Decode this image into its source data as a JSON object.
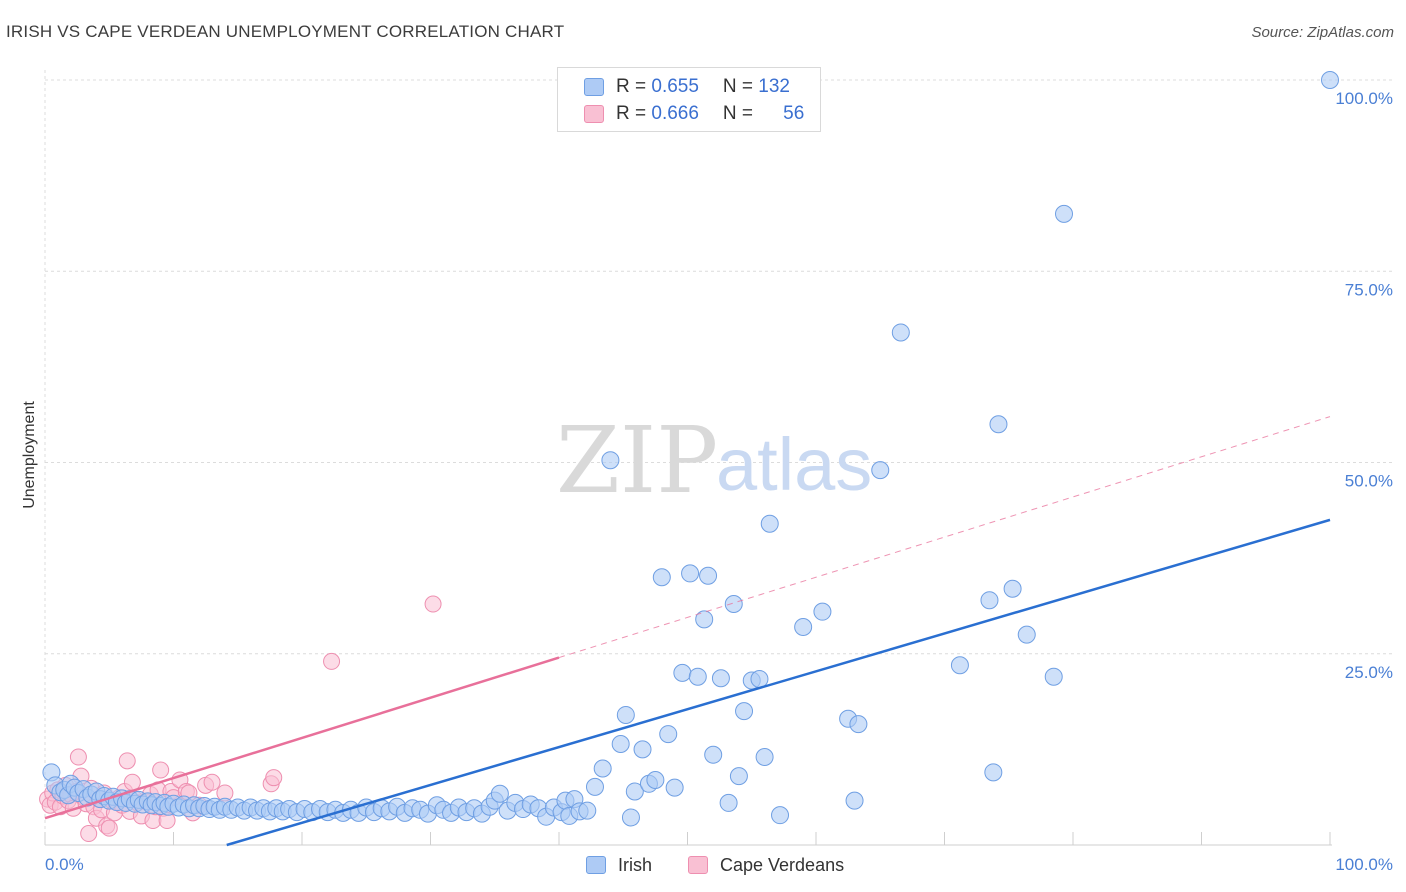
{
  "header": {
    "title": "IRISH VS CAPE VERDEAN UNEMPLOYMENT CORRELATION CHART",
    "source": "Source: ZipAtlas.com"
  },
  "watermark": {
    "zip": "ZIP",
    "atlas": "atlas"
  },
  "legend": {
    "rows": [
      {
        "r_label": "R = ",
        "r_value": "0.655",
        "n_label": "N = ",
        "n_value": "132"
      },
      {
        "r_label": "R = ",
        "r_value": "0.666",
        "n_label": "N = ",
        "n_value": "56"
      }
    ]
  },
  "colors": {
    "irish_fill": "#aecbf5",
    "irish_stroke": "#6f9fe3",
    "irish_line": "#2a6fd1",
    "cape_fill": "#f9c0d3",
    "cape_stroke": "#ee8fb0",
    "cape_line": "#e8709a",
    "tick": "#4a7fd4",
    "grid": "#dcdcdc"
  },
  "chart_data": {
    "type": "scatter",
    "title": "IRISH VS CAPE VERDEAN UNEMPLOYMENT CORRELATION CHART",
    "xlabel": "",
    "ylabel": "Unemployment",
    "xlim": [
      0,
      100
    ],
    "ylim": [
      0,
      100
    ],
    "x_tick_labels": [
      "0.0%",
      "100.0%"
    ],
    "y_tick_labels": [
      "25.0%",
      "50.0%",
      "75.0%",
      "100.0%"
    ],
    "y_ticks": [
      25,
      50,
      75,
      100
    ],
    "grid": true,
    "legend_position": "bottom",
    "series": [
      {
        "name": "Irish",
        "r": 0.655,
        "n": 132,
        "trend": [
          [
            0,
            -7
          ],
          [
            100,
            42.5
          ]
        ],
        "points": [
          [
            0.5,
            9.5
          ],
          [
            0.8,
            7.8
          ],
          [
            1.2,
            6.9
          ],
          [
            1.5,
            7.2
          ],
          [
            1.8,
            6.5
          ],
          [
            2.0,
            8.0
          ],
          [
            2.3,
            7.5
          ],
          [
            2.6,
            6.8
          ],
          [
            3.0,
            7.3
          ],
          [
            3.3,
            6.2
          ],
          [
            3.6,
            6.6
          ],
          [
            4.0,
            7.0
          ],
          [
            4.3,
            6.0
          ],
          [
            4.6,
            6.4
          ],
          [
            5.0,
            5.8
          ],
          [
            5.3,
            6.3
          ],
          [
            5.6,
            5.6
          ],
          [
            6.0,
            6.1
          ],
          [
            6.3,
            5.5
          ],
          [
            6.6,
            6.0
          ],
          [
            7.0,
            5.4
          ],
          [
            7.3,
            5.9
          ],
          [
            7.6,
            5.3
          ],
          [
            8.0,
            5.7
          ],
          [
            8.3,
            5.2
          ],
          [
            8.6,
            5.6
          ],
          [
            9.0,
            5.1
          ],
          [
            9.3,
            5.5
          ],
          [
            9.6,
            5.0
          ],
          [
            10.0,
            5.4
          ],
          [
            10.4,
            4.9
          ],
          [
            10.8,
            5.3
          ],
          [
            11.2,
            4.8
          ],
          [
            11.6,
            5.2
          ],
          [
            12.0,
            4.8
          ],
          [
            12.4,
            5.1
          ],
          [
            12.8,
            4.7
          ],
          [
            13.2,
            5.0
          ],
          [
            13.6,
            4.6
          ],
          [
            14.0,
            5.0
          ],
          [
            14.5,
            4.6
          ],
          [
            15.0,
            4.9
          ],
          [
            15.5,
            4.5
          ],
          [
            16.0,
            4.9
          ],
          [
            16.5,
            4.5
          ],
          [
            17.0,
            4.8
          ],
          [
            17.5,
            4.4
          ],
          [
            18.0,
            4.8
          ],
          [
            18.5,
            4.4
          ],
          [
            19.0,
            4.7
          ],
          [
            19.6,
            4.3
          ],
          [
            20.2,
            4.7
          ],
          [
            20.8,
            4.3
          ],
          [
            21.4,
            4.7
          ],
          [
            22.0,
            4.3
          ],
          [
            22.6,
            4.6
          ],
          [
            23.2,
            4.2
          ],
          [
            23.8,
            4.6
          ],
          [
            24.4,
            4.2
          ],
          [
            25.0,
            4.9
          ],
          [
            25.6,
            4.3
          ],
          [
            26.2,
            4.8
          ],
          [
            26.8,
            4.4
          ],
          [
            27.4,
            5.0
          ],
          [
            28.0,
            4.2
          ],
          [
            28.6,
            4.8
          ],
          [
            29.2,
            4.6
          ],
          [
            29.8,
            4.1
          ],
          [
            30.5,
            5.2
          ],
          [
            31.0,
            4.6
          ],
          [
            31.6,
            4.2
          ],
          [
            32.2,
            4.9
          ],
          [
            32.8,
            4.3
          ],
          [
            33.4,
            4.8
          ],
          [
            34.0,
            4.1
          ],
          [
            34.6,
            5.0
          ],
          [
            35.0,
            5.8
          ],
          [
            35.4,
            6.7
          ],
          [
            36.0,
            4.5
          ],
          [
            36.6,
            5.5
          ],
          [
            37.2,
            4.7
          ],
          [
            37.8,
            5.3
          ],
          [
            38.4,
            4.8
          ],
          [
            39.0,
            3.7
          ],
          [
            39.6,
            4.9
          ],
          [
            40.2,
            4.3
          ],
          [
            40.5,
            5.8
          ],
          [
            40.8,
            3.8
          ],
          [
            41.2,
            6.0
          ],
          [
            41.6,
            4.4
          ],
          [
            42.2,
            4.5
          ],
          [
            42.8,
            7.6
          ],
          [
            43.4,
            10.0
          ],
          [
            44.0,
            50.3
          ],
          [
            44.8,
            13.2
          ],
          [
            45.2,
            17.0
          ],
          [
            45.6,
            3.6
          ],
          [
            45.9,
            7.0
          ],
          [
            46.5,
            12.5
          ],
          [
            47.0,
            8.0
          ],
          [
            47.5,
            8.5
          ],
          [
            48.0,
            35.0
          ],
          [
            48.5,
            14.5
          ],
          [
            49.0,
            7.5
          ],
          [
            49.6,
            22.5
          ],
          [
            50.2,
            35.5
          ],
          [
            50.8,
            22.0
          ],
          [
            51.3,
            29.5
          ],
          [
            51.6,
            35.2
          ],
          [
            52.0,
            11.8
          ],
          [
            52.6,
            21.8
          ],
          [
            53.2,
            5.5
          ],
          [
            53.6,
            31.5
          ],
          [
            54.0,
            9.0
          ],
          [
            54.4,
            17.5
          ],
          [
            55.0,
            21.5
          ],
          [
            55.6,
            21.7
          ],
          [
            56.0,
            11.5
          ],
          [
            56.4,
            42.0
          ],
          [
            57.2,
            3.9
          ],
          [
            59.0,
            28.5
          ],
          [
            60.5,
            30.5
          ],
          [
            62.5,
            16.5
          ],
          [
            63.3,
            15.8
          ],
          [
            63.0,
            5.8
          ],
          [
            65.0,
            49.0
          ],
          [
            66.6,
            67.0
          ],
          [
            71.2,
            23.5
          ],
          [
            73.5,
            32.0
          ],
          [
            73.8,
            9.5
          ],
          [
            74.2,
            55.0
          ],
          [
            75.3,
            33.5
          ],
          [
            76.4,
            27.5
          ],
          [
            78.5,
            22.0
          ],
          [
            79.3,
            82.5
          ],
          [
            100.0,
            100.0
          ]
        ]
      },
      {
        "name": "Cape Verdeans",
        "r": 0.666,
        "n": 56,
        "trend_solid": [
          [
            0,
            3.5
          ],
          [
            40,
            24.5
          ]
        ],
        "trend_dashed": [
          [
            40,
            24.5
          ],
          [
            100,
            56
          ]
        ],
        "points": [
          [
            0.2,
            6.0
          ],
          [
            0.4,
            5.2
          ],
          [
            0.6,
            6.8
          ],
          [
            0.8,
            5.6
          ],
          [
            1.0,
            7.2
          ],
          [
            1.2,
            5.0
          ],
          [
            1.4,
            6.4
          ],
          [
            1.6,
            7.8
          ],
          [
            1.8,
            5.8
          ],
          [
            2.0,
            6.6
          ],
          [
            2.2,
            4.8
          ],
          [
            2.4,
            7.0
          ],
          [
            2.6,
            11.5
          ],
          [
            2.8,
            9.0
          ],
          [
            3.0,
            6.2
          ],
          [
            3.2,
            5.4
          ],
          [
            3.4,
            1.5
          ],
          [
            3.6,
            7.4
          ],
          [
            3.8,
            5.0
          ],
          [
            4.0,
            3.5
          ],
          [
            4.2,
            6.0
          ],
          [
            4.4,
            4.6
          ],
          [
            4.6,
            6.8
          ],
          [
            4.8,
            2.5
          ],
          [
            5.0,
            2.2
          ],
          [
            5.2,
            5.8
          ],
          [
            5.4,
            4.2
          ],
          [
            5.6,
            5.6
          ],
          [
            5.8,
            6.2
          ],
          [
            6.0,
            5.2
          ],
          [
            6.2,
            7.0
          ],
          [
            6.4,
            11.0
          ],
          [
            6.6,
            4.4
          ],
          [
            6.8,
            8.2
          ],
          [
            7.0,
            6.0
          ],
          [
            7.2,
            5.5
          ],
          [
            7.5,
            3.8
          ],
          [
            8.0,
            5.6
          ],
          [
            8.2,
            6.6
          ],
          [
            8.4,
            3.2
          ],
          [
            8.6,
            5.0
          ],
          [
            8.8,
            7.2
          ],
          [
            9.0,
            9.8
          ],
          [
            9.2,
            4.8
          ],
          [
            9.5,
            3.2
          ],
          [
            9.8,
            7.0
          ],
          [
            10.0,
            6.2
          ],
          [
            10.5,
            8.5
          ],
          [
            11.0,
            7.0
          ],
          [
            11.2,
            6.8
          ],
          [
            11.5,
            4.2
          ],
          [
            12.0,
            5.2
          ],
          [
            12.5,
            7.8
          ],
          [
            13.0,
            8.2
          ],
          [
            14.0,
            6.8
          ],
          [
            17.6,
            8.0
          ],
          [
            17.8,
            8.8
          ],
          [
            22.3,
            24.0
          ],
          [
            30.2,
            31.5
          ]
        ]
      }
    ]
  }
}
